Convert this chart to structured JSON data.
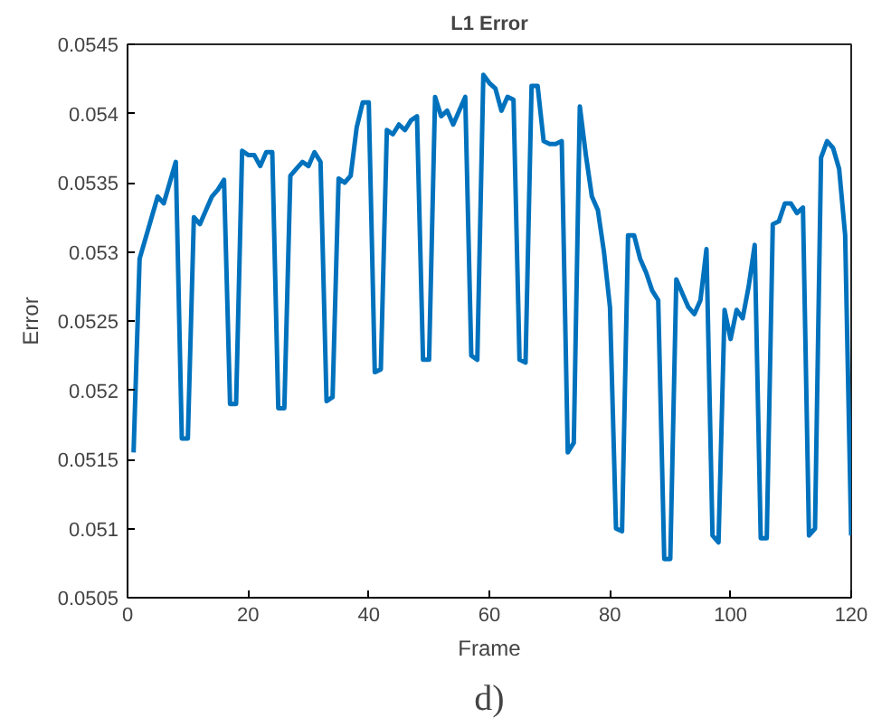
{
  "chart_data": {
    "type": "line",
    "title": "L1 Error",
    "xlabel": "Frame",
    "ylabel": "Error",
    "annotations": [
      "d)"
    ],
    "xlim": [
      0,
      120
    ],
    "xticks": [
      0,
      20,
      40,
      60,
      80,
      100,
      120
    ],
    "ylim": [
      0.0505,
      0.0545
    ],
    "yticks": [
      0.0505,
      0.051,
      0.0515,
      0.052,
      0.0525,
      0.053,
      0.0535,
      0.054,
      0.0545
    ],
    "line_style": "solid",
    "x": [
      1,
      2,
      3,
      4,
      5,
      6,
      7,
      8,
      9,
      10,
      11,
      12,
      13,
      14,
      15,
      16,
      17,
      18,
      19,
      20,
      21,
      22,
      23,
      24,
      25,
      26,
      27,
      28,
      29,
      30,
      31,
      32,
      33,
      34,
      35,
      36,
      37,
      38,
      39,
      40,
      41,
      42,
      43,
      44,
      45,
      46,
      47,
      48,
      49,
      50,
      51,
      52,
      53,
      54,
      55,
      56,
      57,
      58,
      59,
      60,
      61,
      62,
      63,
      64,
      65,
      66,
      67,
      68,
      69,
      70,
      71,
      72,
      73,
      74,
      75,
      76,
      77,
      78,
      79,
      80,
      81,
      82,
      83,
      84,
      85,
      86,
      87,
      88,
      89,
      90,
      91,
      92,
      93,
      94,
      95,
      96,
      97,
      98,
      99,
      100,
      101,
      102,
      103,
      104,
      105,
      106,
      107,
      108,
      109,
      110,
      111,
      112,
      113,
      114,
      115,
      116,
      117,
      118,
      119,
      120
    ],
    "series": [
      {
        "color": "#0072bd",
        "values": [
          0.05155,
          0.05295,
          0.0531,
          0.05325,
          0.0534,
          0.05335,
          0.0535,
          0.05365,
          0.05165,
          0.05165,
          0.05325,
          0.0532,
          0.0533,
          0.0534,
          0.05345,
          0.05352,
          0.0519,
          0.0519,
          0.05373,
          0.0537,
          0.0537,
          0.05362,
          0.05372,
          0.05372,
          0.05187,
          0.05187,
          0.05355,
          0.0536,
          0.05365,
          0.05362,
          0.05372,
          0.05365,
          0.05192,
          0.05195,
          0.05353,
          0.0535,
          0.05355,
          0.0539,
          0.05408,
          0.05408,
          0.05213,
          0.05215,
          0.05388,
          0.05385,
          0.05392,
          0.05388,
          0.05395,
          0.05398,
          0.05222,
          0.05222,
          0.05412,
          0.05398,
          0.05402,
          0.05392,
          0.05402,
          0.05412,
          0.05225,
          0.05222,
          0.05428,
          0.05422,
          0.05418,
          0.05402,
          0.05412,
          0.0541,
          0.05222,
          0.0522,
          0.0542,
          0.0542,
          0.0538,
          0.05378,
          0.05378,
          0.0538,
          0.05155,
          0.05162,
          0.05405,
          0.0537,
          0.0534,
          0.0533,
          0.053,
          0.0526,
          0.051,
          0.05098,
          0.05312,
          0.05312,
          0.05295,
          0.05285,
          0.05272,
          0.05265,
          0.05078,
          0.05078,
          0.0528,
          0.0527,
          0.0526,
          0.05255,
          0.05265,
          0.05302,
          0.05095,
          0.0509,
          0.05258,
          0.05237,
          0.05258,
          0.05252,
          0.05275,
          0.05305,
          0.05093,
          0.05093,
          0.0532,
          0.05322,
          0.05335,
          0.05335,
          0.05328,
          0.05332,
          0.05095,
          0.051,
          0.05368,
          0.0538,
          0.05375,
          0.0536,
          0.05312,
          0.05095
        ]
      }
    ]
  }
}
